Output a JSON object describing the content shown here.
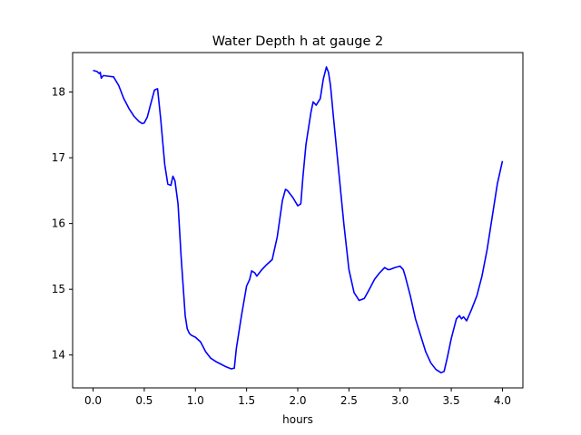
{
  "chart_data": {
    "type": "line",
    "title": "Water Depth h at gauge 2",
    "xlabel": "hours",
    "ylabel": "",
    "xlim": [
      -0.2,
      4.2
    ],
    "ylim": [
      13.5,
      18.6
    ],
    "xticks": [
      0.0,
      0.5,
      1.0,
      1.5,
      2.0,
      2.5,
      3.0,
      3.5,
      4.0
    ],
    "xtick_labels": [
      "0.0",
      "0.5",
      "1.0",
      "1.5",
      "2.0",
      "2.5",
      "3.0",
      "3.5",
      "4.0"
    ],
    "yticks": [
      14,
      15,
      16,
      17,
      18
    ],
    "ytick_labels": [
      "14",
      "15",
      "16",
      "17",
      "18"
    ],
    "grid": false,
    "series": [
      {
        "color": "#0000ff",
        "x": [
          0.0,
          0.04,
          0.06,
          0.07,
          0.08,
          0.1,
          0.15,
          0.2,
          0.25,
          0.3,
          0.35,
          0.4,
          0.45,
          0.48,
          0.5,
          0.53,
          0.56,
          0.6,
          0.63,
          0.66,
          0.7,
          0.73,
          0.76,
          0.78,
          0.8,
          0.83,
          0.86,
          0.9,
          0.92,
          0.94,
          0.96,
          1.0,
          1.05,
          1.1,
          1.15,
          1.2,
          1.25,
          1.3,
          1.35,
          1.38,
          1.4,
          1.45,
          1.5,
          1.53,
          1.55,
          1.58,
          1.6,
          1.65,
          1.7,
          1.75,
          1.8,
          1.85,
          1.88,
          1.9,
          1.95,
          2.0,
          2.03,
          2.05,
          2.08,
          2.1,
          2.13,
          2.15,
          2.18,
          2.2,
          2.22,
          2.25,
          2.28,
          2.3,
          2.32,
          2.35,
          2.4,
          2.45,
          2.5,
          2.55,
          2.6,
          2.65,
          2.7,
          2.75,
          2.8,
          2.85,
          2.88,
          2.9,
          2.95,
          3.0,
          3.03,
          3.05,
          3.1,
          3.15,
          3.2,
          3.25,
          3.3,
          3.35,
          3.4,
          3.43,
          3.46,
          3.5,
          3.55,
          3.58,
          3.6,
          3.62,
          3.65,
          3.7,
          3.75,
          3.8,
          3.85,
          3.9,
          3.95,
          4.0
        ],
        "values": [
          18.33,
          18.31,
          18.28,
          18.3,
          18.21,
          18.25,
          18.24,
          18.23,
          18.1,
          17.9,
          17.75,
          17.63,
          17.55,
          17.52,
          17.53,
          17.62,
          17.8,
          18.03,
          18.05,
          17.6,
          16.9,
          16.6,
          16.58,
          16.72,
          16.65,
          16.3,
          15.5,
          14.6,
          14.4,
          14.33,
          14.3,
          14.27,
          14.2,
          14.05,
          13.95,
          13.9,
          13.86,
          13.82,
          13.79,
          13.8,
          14.1,
          14.6,
          15.05,
          15.15,
          15.28,
          15.25,
          15.2,
          15.3,
          15.38,
          15.45,
          15.8,
          16.35,
          16.52,
          16.5,
          16.4,
          16.27,
          16.3,
          16.7,
          17.2,
          17.4,
          17.7,
          17.85,
          17.8,
          17.85,
          17.9,
          18.2,
          18.38,
          18.3,
          18.1,
          17.6,
          16.8,
          16.0,
          15.3,
          14.95,
          14.83,
          14.86,
          15.0,
          15.15,
          15.25,
          15.33,
          15.3,
          15.3,
          15.33,
          15.35,
          15.3,
          15.2,
          14.9,
          14.55,
          14.3,
          14.05,
          13.88,
          13.78,
          13.73,
          13.75,
          13.95,
          14.25,
          14.55,
          14.6,
          14.55,
          14.58,
          14.52,
          14.7,
          14.9,
          15.2,
          15.6,
          16.1,
          16.6,
          16.95
        ]
      }
    ]
  }
}
